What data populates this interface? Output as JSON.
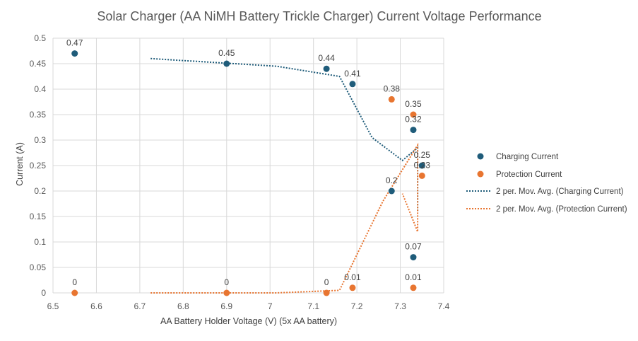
{
  "chart_data": {
    "type": "scatter",
    "title": "Solar Charger (AA NiMH Battery Trickle Charger) Current Voltage Performance",
    "xlabel": "AA Battery Holder Voltage (V) (5x AA battery)",
    "ylabel": "Current (A)",
    "xlim": [
      6.5,
      7.4
    ],
    "ylim": [
      0,
      0.5
    ],
    "x_ticks": [
      "6.5",
      "6.6",
      "6.7",
      "6.8",
      "6.9",
      "7",
      "7.1",
      "7.2",
      "7.3",
      "7.4"
    ],
    "y_ticks": [
      "0",
      "0.05",
      "0.1",
      "0.15",
      "0.2",
      "0.25",
      "0.3",
      "0.35",
      "0.4",
      "0.45",
      "0.5"
    ],
    "grid": "vertical and horizontal",
    "legend_position": "right",
    "series": [
      {
        "name": "Charging Current",
        "color": "#1f5c7a",
        "x": [
          6.55,
          6.9,
          7.13,
          7.19,
          7.28,
          7.33,
          7.35,
          7.33
        ],
        "y": [
          0.47,
          0.45,
          0.44,
          0.41,
          0.2,
          0.32,
          0.25,
          0.07
        ],
        "labels": [
          "0.47",
          "0.45",
          "0.44",
          "0.41",
          "0.2",
          "0.32",
          "0.25",
          "0.07"
        ]
      },
      {
        "name": "Protection Current",
        "color": "#e87530",
        "x": [
          6.55,
          6.9,
          7.13,
          7.19,
          7.33,
          7.35,
          7.33,
          7.28
        ],
        "y": [
          0,
          0,
          0,
          0.01,
          0.35,
          0.23,
          0.01,
          0.38
        ],
        "labels": [
          "0",
          "0",
          "0",
          "0.01",
          "0.35",
          "0.23",
          "0.01",
          "0.38"
        ]
      }
    ],
    "trendlines": [
      {
        "name": "2 per. Mov. Avg. (Charging Current)",
        "color": "#1f5c7a",
        "style": "dotted",
        "x": [
          6.725,
          7.015,
          7.16,
          7.235,
          7.305,
          7.34,
          7.34
        ],
        "y": [
          0.46,
          0.445,
          0.425,
          0.305,
          0.26,
          0.285,
          0.16
        ]
      },
      {
        "name": "2 per. Mov. Avg. (Protection Current)",
        "color": "#e87530",
        "style": "dotted",
        "x": [
          6.725,
          7.015,
          7.16,
          7.26,
          7.34,
          7.34,
          7.305
        ],
        "y": [
          0,
          0,
          0.005,
          0.18,
          0.29,
          0.12,
          0.195
        ]
      }
    ]
  }
}
